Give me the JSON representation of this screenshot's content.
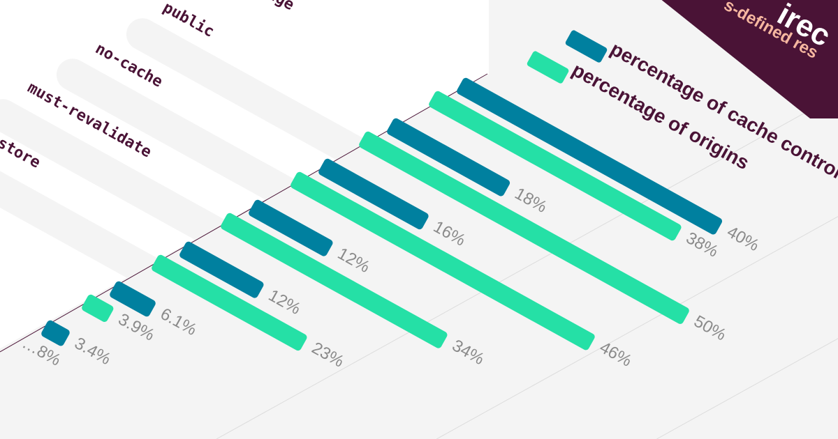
{
  "colors": {
    "background": "#f4f4f4",
    "plot_area": "#f4f4f4",
    "label_panel": "#ffffff",
    "header_band": "#4a1336",
    "subtitle": "#f6b7a0",
    "series_dark": "#00809f",
    "series_light": "#25e0a6",
    "value_text": "#8a8a8a",
    "category_text": "#4a1336",
    "legend_text": "#4a1336",
    "axis_line": "#4a1336"
  },
  "header": {
    "title_fragment": "irec",
    "subtitle_fragment": "s-defined res"
  },
  "chart_data": {
    "type": "bar",
    "orientation": "horizontal",
    "categories": [
      "max-age",
      "public",
      "no-cache",
      "must-revalidate",
      "no-store",
      "",
      "",
      ""
    ],
    "series": [
      {
        "name": "percentage of cache control",
        "color": "#00809f",
        "values": [
          null,
          40,
          18,
          16,
          12,
          12,
          6.1,
          3.4
        ],
        "labels": [
          "",
          "40%",
          "18%",
          "16%",
          "12%",
          "12%",
          "6.1%",
          "3.4%"
        ]
      },
      {
        "name": "percentage of origins",
        "color": "#25e0a6",
        "values": [
          null,
          38,
          50,
          46,
          34,
          23,
          3.9,
          null
        ],
        "labels": [
          "",
          "38%",
          "50%",
          "46%",
          "34%",
          "23%",
          "3.9%",
          "…8%"
        ]
      }
    ],
    "xlim": [
      0,
      60
    ],
    "grid": true,
    "legend_position": "top-right"
  }
}
